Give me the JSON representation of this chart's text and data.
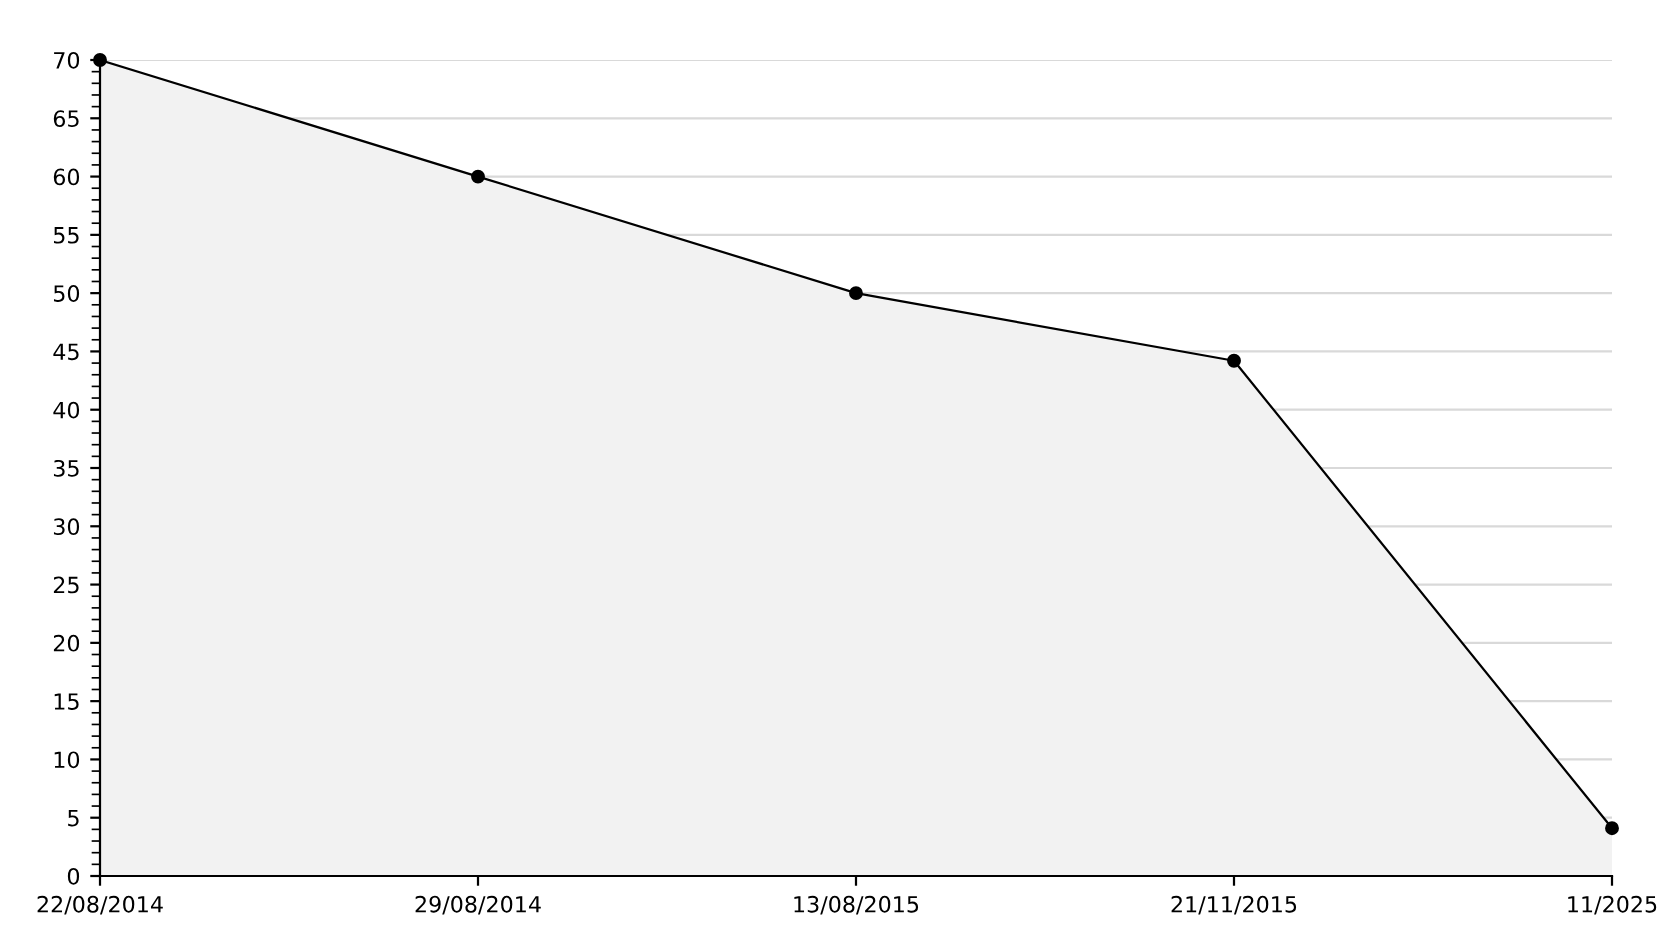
{
  "chart_data": {
    "type": "area",
    "categories": [
      "22/08/2014",
      "29/08/2014",
      "13/08/2015",
      "21/11/2015",
      "11/2025"
    ],
    "series": [
      {
        "color": "#f2f2f2",
        "values": [
          70,
          60,
          50,
          44.2,
          4.1
        ]
      }
    ],
    "marker": "circle",
    "line_style": "solid",
    "grid": "y",
    "ylim": [
      0,
      70
    ],
    "yticks": [
      0,
      5,
      10,
      15,
      20,
      25,
      30,
      35,
      40,
      45,
      50,
      55,
      60,
      65,
      70
    ]
  }
}
